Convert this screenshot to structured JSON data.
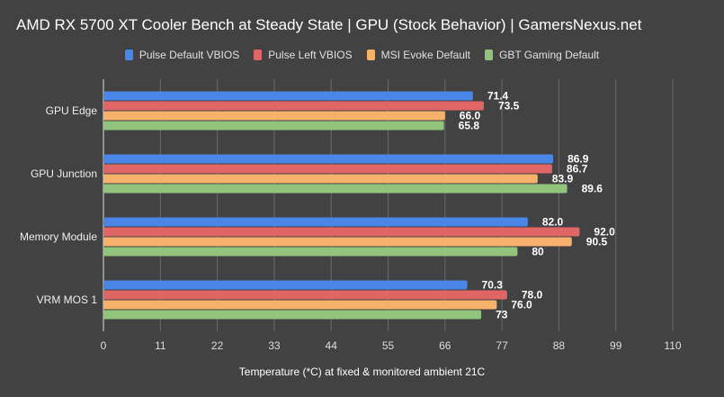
{
  "chart_data": {
    "type": "bar",
    "orientation": "horizontal",
    "title": "AMD RX 5700 XT Cooler Bench at Steady State | GPU (Stock Behavior) | GamersNexus.net",
    "xlabel": "Temperature (*C) at fixed & monitored ambient 21C",
    "ylabel": "",
    "xlim": [
      0,
      110
    ],
    "xticks": [
      "0",
      "11",
      "22",
      "33",
      "44",
      "55",
      "66",
      "77",
      "88",
      "99",
      "110"
    ],
    "grid": true,
    "legend_position": "top",
    "categories": [
      "GPU Edge",
      "GPU Junction",
      "Memory Module",
      "VRM MOS 1"
    ],
    "series": [
      {
        "name": "Pulse Default VBIOS",
        "color": "#4a86e8",
        "values": [
          71.4,
          86.9,
          82.0,
          70.3
        ],
        "labels": [
          "71.4",
          "86.9",
          "82.0",
          "70.3"
        ]
      },
      {
        "name": "Pulse Left VBIOS",
        "color": "#e06666",
        "values": [
          73.5,
          86.7,
          92.0,
          78.0
        ],
        "labels": [
          "73.5",
          "86.7",
          "92.0",
          "78.0"
        ]
      },
      {
        "name": "MSI Evoke Default",
        "color": "#f6b26b",
        "values": [
          66.0,
          83.9,
          90.5,
          76.0
        ],
        "labels": [
          "66.0",
          "83.9",
          "90.5",
          "76.0"
        ]
      },
      {
        "name": "GBT Gaming Default",
        "color": "#93c47d",
        "values": [
          65.8,
          89.6,
          80,
          73
        ],
        "labels": [
          "65.8",
          "89.6",
          "80",
          "73"
        ]
      }
    ]
  }
}
